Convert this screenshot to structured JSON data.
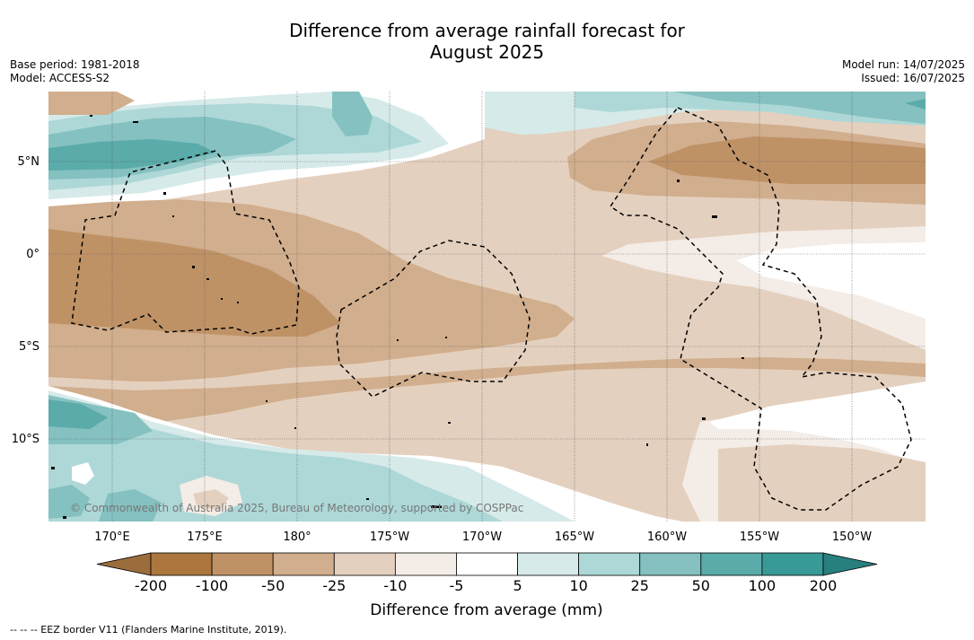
{
  "title_line1": "Difference from average rainfall forecast for",
  "title_line2": "August 2025",
  "base_period": "Base period: 1981-2018",
  "model": "Model: ACCESS-S2",
  "model_run": "Model run: 14/07/2025",
  "issued": "Issued: 16/07/2025",
  "lat_labels": [
    "5°N",
    "0°",
    "5°S",
    "10°S"
  ],
  "lon_labels": [
    "170°E",
    "175°E",
    "180°",
    "175°W",
    "170°W",
    "165°W",
    "160°W",
    "155°W",
    "150°W"
  ],
  "copyright": "© Commonwealth of Australia 2025, Bureau of Meteorology, supported by COSPPac",
  "colorbar": {
    "label": "Difference from average (mm)",
    "ticks": [
      "-200",
      "-100",
      "-50",
      "-25",
      "-10",
      "-5",
      "5",
      "10",
      "25",
      "50",
      "100",
      "200"
    ],
    "colors": [
      "#9c6d3c",
      "#ac763e",
      "#bf9266",
      "#d1ae8d",
      "#e4d0be",
      "#f4ece6",
      "#ffffff",
      "#d6eae9",
      "#add8d7",
      "#84c1c0",
      "#5aaba9",
      "#389a97",
      "#27807d"
    ]
  },
  "footnote": "-- -- -- EEZ border V11 (Flanders Marine Institute, 2019)."
}
